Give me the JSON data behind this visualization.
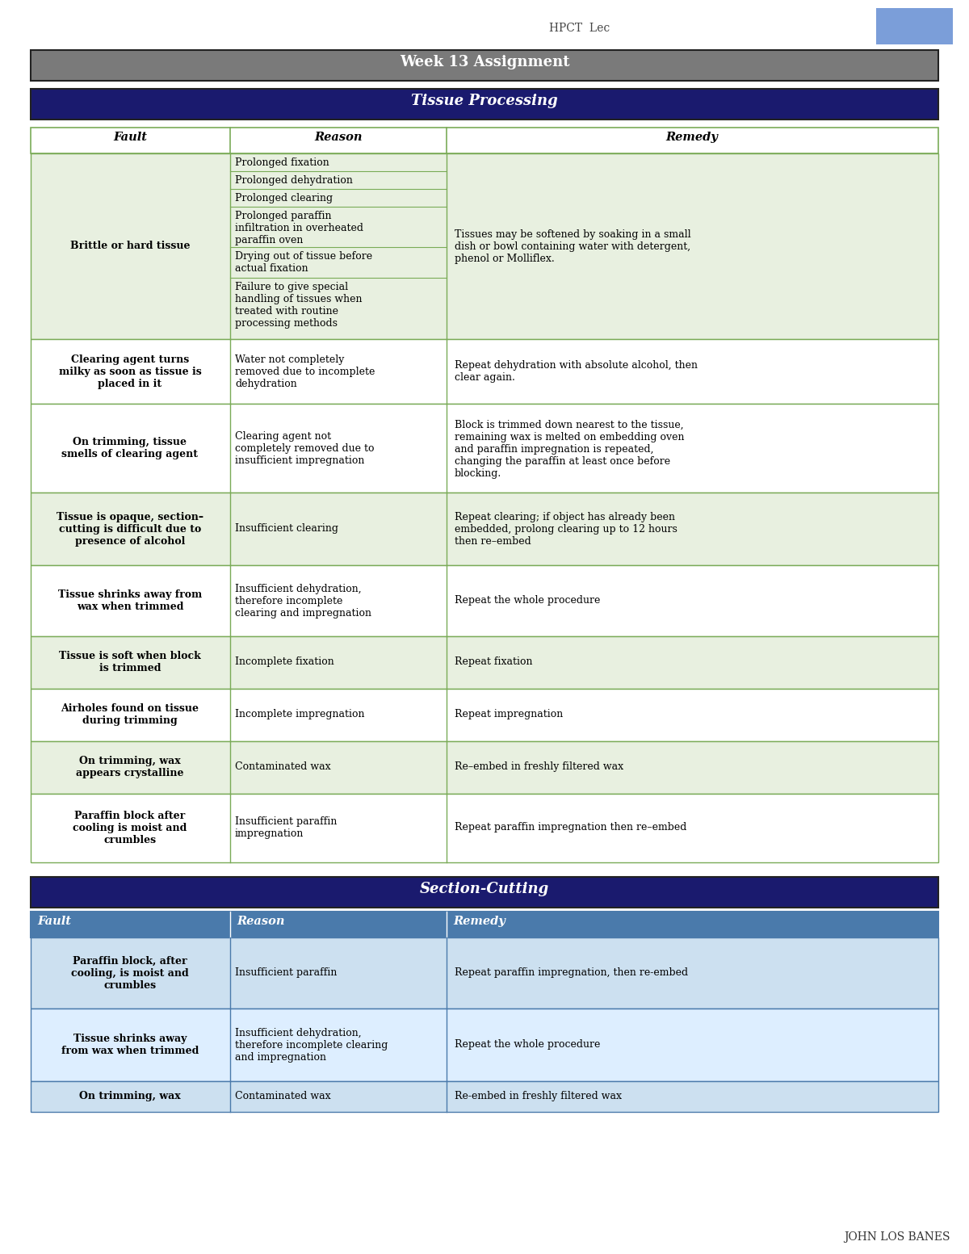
{
  "page_bg": "#ffffff",
  "header_text": "HPCT  Lec",
  "header_box_color": "#7B9ED9",
  "footer_text": "JOHN LOS BANES",
  "week_title": "Week 13 Assignment",
  "week_title_bg": "#7a7a7a",
  "week_title_color": "#ffffff",
  "section1_title": "Tissue Processing",
  "section1_title_bg": "#1a1a6e",
  "section1_title_color": "#ffffff",
  "section2_title": "Section-Cutting",
  "section2_title_bg": "#1a1a6e",
  "section2_title_color": "#ffffff",
  "col_headers1": [
    "Fault",
    "Reason",
    "Remedy"
  ],
  "col_headers2": [
    "Fault",
    "Reason",
    "Remedy"
  ],
  "col_headers2_bg": "#4a7aab",
  "col_headers2_color": "#ffffff",
  "table1_border_color": "#7aab57",
  "table2_border_color": "#4a7aab",
  "row_bg_light": "#e8f0e0",
  "row_bg_white": "#ffffff",
  "row_bg_light2": "#cce0f0",
  "row_bg_white2": "#ddeeff",
  "brittle_reasons": [
    "Prolonged fixation",
    "Prolonged dehydration",
    "Prolonged clearing",
    "Prolonged paraffin\ninfiltration in overheated\nparaffin oven",
    "Drying out of tissue before\nactual fixation",
    "Failure to give special\nhandling of tissues when\ntreated with routine\nprocessing methods"
  ],
  "tissue_processing_rows": [
    {
      "fault": "Brittle or hard tissue",
      "reason": "Prolonged fixation\nProlonged dehydration\nProlonged clearing\nProlonged paraffin\ninfiltration in overheated\nparaffin oven\nDrying out of tissue before\nactual fixation\nFailure to give special\nhandling of tissues when\ntreated with routine\nprocessing methods",
      "remedy": "Tissues may be softened by soaking in a small\ndish or bowl containing water with detergent,\nphenol or Molliflex.",
      "shade": "light"
    },
    {
      "fault": "Clearing agent turns\nmilky as soon as tissue is\nplaced in it",
      "reason": "Water not completely\nremoved due to incomplete\ndehydration",
      "remedy": "Repeat dehydration with absolute alcohol, then\nclear again.",
      "shade": "white"
    },
    {
      "fault": "On trimming, tissue\nsmells of clearing agent",
      "reason": "Clearing agent not\ncompletely removed due to\ninsufficient impregnation",
      "remedy": "Block is trimmed down nearest to the tissue,\nremaining wax is melted on embedding oven\nand paraffin impregnation is repeated,\nchanging the paraffin at least once before\nblocking.",
      "shade": "white"
    },
    {
      "fault": "Tissue is opaque, section–\ncutting is difficult due to\npresence of alcohol",
      "reason": "Insufficient clearing",
      "remedy": "Repeat clearing; if object has already been\nembedded, prolong clearing up to 12 hours\nthen re–embed",
      "shade": "light"
    },
    {
      "fault": "Tissue shrinks away from\nwax when trimmed",
      "reason": "Insufficient dehydration,\ntherefore incomplete\nclearing and impregnation",
      "remedy": "Repeat the whole procedure",
      "shade": "white"
    },
    {
      "fault": "Tissue is soft when block\nis trimmed",
      "reason": "Incomplete fixation",
      "remedy": "Repeat fixation",
      "shade": "light"
    },
    {
      "fault": "Airholes found on tissue\nduring trimming",
      "reason": "Incomplete impregnation",
      "remedy": "Repeat impregnation",
      "shade": "white"
    },
    {
      "fault": "On trimming, wax\nappears crystalline",
      "reason": "Contaminated wax",
      "remedy": "Re–embed in freshly filtered wax",
      "shade": "light"
    },
    {
      "fault": "Paraffin block after\ncooling is moist and\ncrumbles",
      "reason": "Insufficient paraffin\nimpregnation",
      "remedy": "Repeat paraffin impregnation then re–embed",
      "shade": "white"
    }
  ],
  "section_cutting_rows": [
    {
      "fault": "Paraffin block, after\ncooling, is moist and\ncrumbles",
      "reason": "Insufficient paraffin",
      "remedy": "Repeat paraffin impregnation, then re-embed",
      "shade": "light"
    },
    {
      "fault": "Tissue shrinks away\nfrom wax when trimmed",
      "reason": "Insufficient dehydration,\ntherefore incomplete clearing\nand impregnation",
      "remedy": "Repeat the whole procedure",
      "shade": "white"
    },
    {
      "fault": "On trimming, wax",
      "reason": "Contaminated wax",
      "remedy": "Re-embed in freshly filtered wax",
      "shade": "light"
    }
  ]
}
